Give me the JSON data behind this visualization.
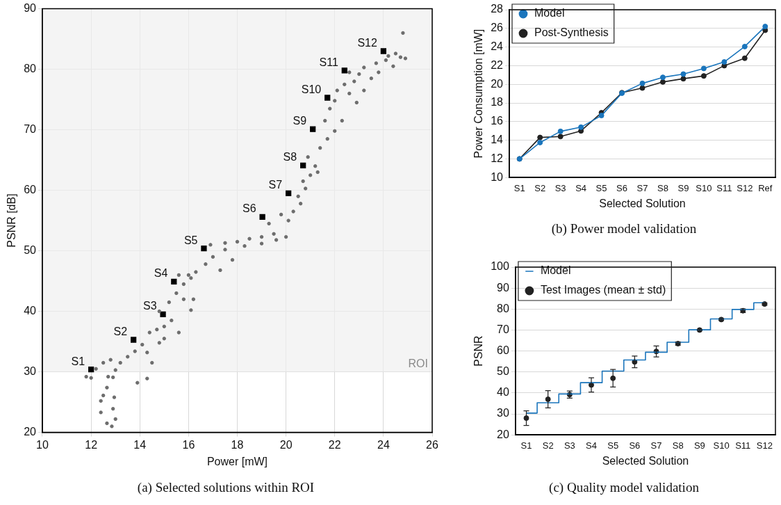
{
  "chart_data": [
    {
      "type": "scatter",
      "xlabel": "Power [mW]",
      "ylabel": "PSNR [dB]",
      "xlim": [
        10,
        26
      ],
      "xticks": [
        10,
        12,
        14,
        16,
        18,
        20,
        22,
        24,
        26
      ],
      "ylim": [
        20,
        90
      ],
      "yticks": [
        20,
        30,
        40,
        50,
        60,
        70,
        80,
        90
      ],
      "grid": true,
      "marker": "circle",
      "bands": [
        {
          "axis": "y",
          "from": 30,
          "to": 90,
          "label": "ROI",
          "color": "#efefef"
        }
      ],
      "annotations": [
        "(a) Selected solutions within ROI"
      ],
      "series": [
        {
          "color": "#6d6d6d",
          "x": [
            11.8,
            12.0,
            12.4,
            12.5,
            12.65,
            12.4,
            12.65,
            12.85,
            12.95,
            12.9,
            13.0,
            12.7,
            12.9,
            13.9,
            14.3,
            12.2,
            12.5,
            12.8,
            13.0,
            13.2,
            13.5,
            13.8,
            14.1,
            14.3,
            14.5,
            14.4,
            14.7,
            15.0,
            15.3,
            15.6,
            15.0,
            14.8,
            15.2,
            15.5,
            15.8,
            16.1,
            15.6,
            16.3,
            16.7,
            17.0,
            17.3,
            17.8,
            16.9,
            17.5,
            18.0,
            18.5,
            19.0,
            19.5,
            17.5,
            18.3,
            19.0,
            19.6,
            20.0,
            19.3,
            19.8,
            20.3,
            20.6,
            20.1,
            20.5,
            20.8,
            20.7,
            21.0,
            21.2,
            20.9,
            21.3,
            21.4,
            21.7,
            22.0,
            21.6,
            21.8,
            22.0,
            22.3,
            22.1,
            22.4,
            22.8,
            22.6,
            22.9,
            23.2,
            23.5,
            23.8,
            23.2,
            23.7,
            24.2,
            24.5,
            24.7,
            24.9,
            24.8,
            24.1,
            24.4,
            23.0,
            22.6,
            16.0,
            15.8,
            16.1,
            16.2,
            14.8
          ],
          "values": [
            29.2,
            29,
            25.2,
            26.1,
            27.4,
            23.3,
            21.5,
            21,
            25.8,
            23.9,
            22.2,
            29.2,
            29.1,
            28.2,
            28.9,
            30.5,
            31.5,
            32,
            30.3,
            31.5,
            32.5,
            33.4,
            34.5,
            33.2,
            31.5,
            36.5,
            37,
            37.5,
            38.5,
            36.5,
            35.5,
            40,
            41.5,
            43,
            44.5,
            45.5,
            46,
            46.5,
            47.8,
            49,
            46.8,
            48.5,
            51,
            51.3,
            51.5,
            52,
            52.3,
            52.8,
            50.2,
            50.8,
            51.2,
            51.8,
            52.3,
            54.5,
            56,
            56.5,
            57.8,
            55,
            59,
            60.3,
            61.5,
            62.5,
            64,
            65.5,
            63,
            67,
            68.5,
            69.8,
            71.5,
            73.5,
            74.8,
            71.5,
            76.5,
            77.5,
            78,
            76,
            74.5,
            76.5,
            78.5,
            79.5,
            80.3,
            81,
            82.2,
            82.6,
            82,
            81.8,
            86,
            81.5,
            80.5,
            79.2,
            79.5,
            46,
            42,
            40.2,
            42,
            34.8
          ]
        },
        {
          "color": "#000000",
          "marker": "square",
          "x": [
            12.0,
            13.74,
            14.95,
            15.4,
            16.63,
            19.03,
            20.1,
            20.7,
            21.1,
            21.7,
            22.4,
            24.0
          ],
          "values": [
            30.4,
            35.3,
            39.5,
            44.9,
            50.4,
            55.6,
            59.5,
            64.1,
            70.1,
            75.3,
            79.8,
            83.0
          ],
          "value_labels": [
            "S1",
            "S2",
            "S3",
            "S4",
            "S5",
            "S6",
            "S7",
            "S8",
            "S9",
            "S10",
            "S11",
            "S12"
          ]
        }
      ]
    },
    {
      "type": "line",
      "xlabel": "Selected Solution",
      "ylabel": "Power Consumption [mW]",
      "ylim": [
        10,
        28
      ],
      "yticks": [
        10,
        12,
        14,
        16,
        18,
        20,
        22,
        24,
        26,
        28
      ],
      "grid": "y",
      "legend": "top left",
      "marker": "circle",
      "annotations": [
        "(b) Power model validation"
      ],
      "categories": [
        "S1",
        "S2",
        "S3",
        "S4",
        "S5",
        "S6",
        "S7",
        "S8",
        "S9",
        "S10",
        "S11",
        "S12",
        "Ref"
      ],
      "series": [
        {
          "name": "Model",
          "color": "#1a75bc",
          "values": [
            12,
            13.75,
            14.95,
            15.4,
            16.65,
            19.05,
            20.1,
            20.75,
            21.1,
            21.7,
            22.4,
            24.05,
            26.2
          ]
        },
        {
          "name": "Post-Synthesis",
          "color": "#222222",
          "values": [
            12,
            14.3,
            14.4,
            15.0,
            16.95,
            19.1,
            19.6,
            20.25,
            20.6,
            20.9,
            22.0,
            22.8,
            25.8
          ]
        }
      ]
    },
    {
      "type": "scatter",
      "xlabel": "Selected Solution",
      "ylabel": "PSNR",
      "ylim": [
        20,
        100
      ],
      "yticks": [
        20,
        30,
        40,
        50,
        60,
        70,
        80,
        90,
        100
      ],
      "grid": "y",
      "legend": "top left",
      "marker": "circle",
      "annotations": [
        "(c) Quality model validation"
      ],
      "categories": [
        "S1",
        "S2",
        "S3",
        "S4",
        "S5",
        "S6",
        "S7",
        "S8",
        "S9",
        "S10",
        "S11",
        "S12"
      ],
      "series": [
        {
          "name": "Model",
          "type": "step",
          "color": "#1a75bc",
          "marker": "none",
          "values": [
            30.4,
            35.3,
            39.5,
            44.9,
            50.4,
            55.7,
            59.4,
            64.2,
            70.1,
            75.3,
            79.8,
            83.0
          ]
        },
        {
          "name": "Test Images (mean ± std)",
          "color": "#222222",
          "x": [
            "S1",
            "S2",
            "S3",
            "S4",
            "S5",
            "S6",
            "S7",
            "S8",
            "S9",
            "S10",
            "S11",
            "S12"
          ],
          "values": [
            28,
            37,
            39.2,
            43.8,
            47,
            54.8,
            59.8,
            63.5,
            70,
            75,
            79.2,
            82.4
          ],
          "errors": [
            3.5,
            4.1,
            1.7,
            3.4,
            4.2,
            2.8,
            2.6,
            0.8,
            0.3,
            0.4,
            0.9,
            0.5
          ]
        }
      ]
    }
  ]
}
